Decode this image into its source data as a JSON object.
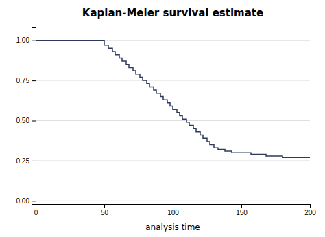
{
  "chart_data": {
    "type": "step",
    "title": "Kaplan-Meier survival estimate",
    "xlabel": "analysis time",
    "color": "#2d3a5e",
    "grid": "y",
    "xlim": [
      0,
      200
    ],
    "ylim": [
      -0.02,
      1.08
    ],
    "xticks": [
      0,
      50,
      100,
      150,
      200
    ],
    "yticks": [
      {
        "value": 0.0,
        "label": "0.00"
      },
      {
        "value": 0.25,
        "label": "0.25"
      },
      {
        "value": 0.5,
        "label": "0.50"
      },
      {
        "value": 0.75,
        "label": "0.75"
      },
      {
        "value": 1.0,
        "label": "1.00"
      }
    ],
    "x": [
      0,
      30,
      50,
      53,
      56,
      58,
      61,
      63,
      66,
      68,
      71,
      73,
      76,
      78,
      81,
      83,
      86,
      88,
      91,
      93,
      96,
      98,
      100,
      103,
      105,
      107,
      110,
      112,
      115,
      117,
      120,
      122,
      125,
      127,
      130,
      133,
      135,
      138,
      140,
      143,
      145,
      148,
      150,
      153,
      155,
      157,
      160,
      162,
      165,
      168,
      170,
      173,
      175,
      178,
      180,
      185,
      190,
      195,
      200
    ],
    "values": [
      1.0,
      1.0,
      0.97,
      0.95,
      0.93,
      0.91,
      0.89,
      0.87,
      0.85,
      0.83,
      0.81,
      0.79,
      0.77,
      0.75,
      0.73,
      0.71,
      0.69,
      0.67,
      0.65,
      0.63,
      0.61,
      0.59,
      0.57,
      0.55,
      0.53,
      0.51,
      0.49,
      0.47,
      0.45,
      0.43,
      0.41,
      0.39,
      0.37,
      0.35,
      0.33,
      0.32,
      0.32,
      0.31,
      0.31,
      0.3,
      0.3,
      0.3,
      0.3,
      0.3,
      0.3,
      0.29,
      0.29,
      0.29,
      0.29,
      0.28,
      0.28,
      0.28,
      0.28,
      0.28,
      0.27,
      0.27,
      0.27,
      0.27,
      0.27
    ]
  }
}
